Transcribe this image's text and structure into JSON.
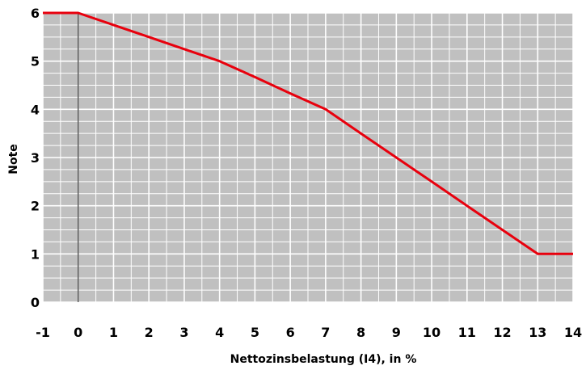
{
  "chart_data": {
    "type": "line",
    "title": "",
    "xlabel": "Nettozinsbelastung (I4), in %",
    "ylabel": "Note",
    "xlim": [
      -1,
      14
    ],
    "ylim": [
      0,
      6
    ],
    "x_ticks": [
      -1,
      0,
      1,
      2,
      3,
      4,
      5,
      6,
      7,
      8,
      9,
      10,
      11,
      12,
      13,
      14
    ],
    "y_ticks": [
      0,
      1,
      2,
      3,
      4,
      5,
      6
    ],
    "minor_x_step": 0.5,
    "minor_y_step": 0.25,
    "grid": true,
    "plot_background": "#c0c0c0",
    "grid_color": "#ffffff",
    "series": [
      {
        "color": "#e8000d",
        "x": [
          -1,
          0,
          1,
          2,
          3,
          4,
          5,
          6,
          7,
          8,
          9,
          10,
          11,
          12,
          13,
          14
        ],
        "y": [
          6,
          6,
          5.75,
          5.5,
          5.25,
          5.0,
          4.67,
          4.33,
          4.0,
          3.5,
          3.0,
          2.5,
          2.0,
          1.5,
          1.0,
          1.0
        ]
      }
    ]
  }
}
